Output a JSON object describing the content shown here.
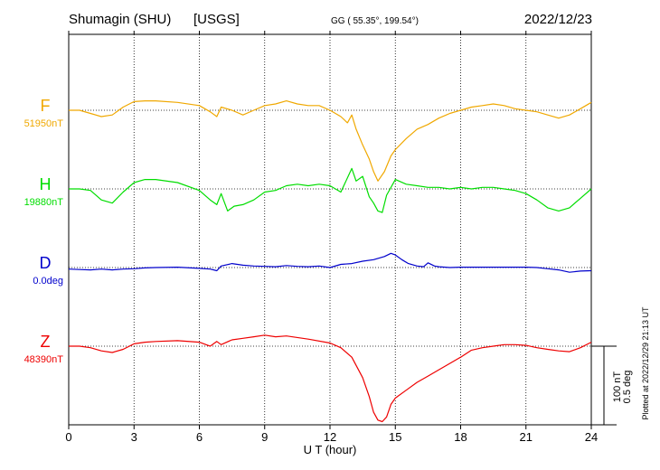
{
  "header": {
    "station": "Shumagin (SHU)",
    "source": "[USGS]",
    "coords": "GG ( 55.35°, 199.54°)",
    "date": "2022/12/23"
  },
  "side_note": "Plotted at 2022/12/29 21:13 UT",
  "scale_bar": {
    "nt_label": "100 nT",
    "deg_label": "0.5 deg"
  },
  "colors": {
    "F": "#f0a800",
    "H": "#00dd00",
    "D": "#0000cc",
    "Z": "#ee0000",
    "axis": "#000000"
  },
  "chart_data": {
    "type": "line",
    "title": "",
    "xlabel": "U T (hour)",
    "xlim": [
      0,
      24
    ],
    "x_ticks": [
      0,
      3,
      6,
      9,
      12,
      15,
      18,
      21,
      24
    ],
    "grid": true,
    "series": [
      {
        "name": "F",
        "baseline_label": "51950nT",
        "baseline": 51950,
        "x": [
          0,
          0.5,
          1,
          1.5,
          2,
          2.5,
          3,
          3.5,
          4,
          5,
          6,
          6.5,
          6.8,
          7,
          7.5,
          8,
          8.5,
          9,
          9.5,
          10,
          10.5,
          11,
          11.5,
          12,
          12.5,
          12.8,
          13,
          13.2,
          13.5,
          13.8,
          14,
          14.2,
          14.5,
          14.8,
          15,
          15.5,
          16,
          16.5,
          17,
          17.5,
          18,
          18.5,
          19,
          19.5,
          20,
          20.5,
          21,
          21.5,
          22,
          22.5,
          23,
          23.5,
          24
        ],
        "values": [
          51950,
          51950,
          51946,
          51942,
          51944,
          51954,
          51961,
          51962,
          51962,
          51960,
          51956,
          51948,
          51942,
          51954,
          51950,
          51944,
          51950,
          51956,
          51958,
          51962,
          51958,
          51956,
          51956,
          51950,
          51942,
          51934,
          51944,
          51926,
          51906,
          51888,
          51872,
          51860,
          51872,
          51892,
          51900,
          51914,
          51926,
          51932,
          51940,
          51946,
          51950,
          51954,
          51956,
          51958,
          51956,
          51952,
          51950,
          51948,
          51944,
          51940,
          51944,
          51952,
          51960
        ]
      },
      {
        "name": "H",
        "baseline_label": "19880nT",
        "baseline": 19880,
        "x": [
          0,
          0.5,
          1,
          1.5,
          2,
          2.5,
          3,
          3.5,
          4,
          5,
          6,
          6.5,
          6.8,
          7,
          7.3,
          7.6,
          8,
          8.5,
          9,
          9.5,
          10,
          10.5,
          11,
          11.5,
          12,
          12.5,
          13,
          13.2,
          13.5,
          13.8,
          14,
          14.2,
          14.4,
          14.6,
          15,
          15.5,
          16,
          16.5,
          17,
          17.5,
          18,
          18.5,
          19,
          19.5,
          20,
          20.5,
          21,
          21.5,
          22,
          22.5,
          23,
          23.5,
          24
        ],
        "values": [
          19880,
          19880,
          19878,
          19866,
          19862,
          19876,
          19888,
          19892,
          19892,
          19888,
          19878,
          19866,
          19860,
          19874,
          19852,
          19858,
          19860,
          19866,
          19876,
          19878,
          19884,
          19886,
          19884,
          19886,
          19884,
          19876,
          19906,
          19890,
          19896,
          19870,
          19862,
          19852,
          19850,
          19872,
          19892,
          19886,
          19884,
          19882,
          19882,
          19880,
          19882,
          19880,
          19882,
          19882,
          19880,
          19878,
          19874,
          19866,
          19856,
          19852,
          19856,
          19868,
          19880
        ]
      },
      {
        "name": "D",
        "baseline_label": "0.0deg",
        "baseline": 0.0,
        "x": [
          0,
          0.5,
          1,
          1.5,
          2,
          2.5,
          3,
          3.5,
          4,
          5,
          6,
          6.5,
          6.8,
          7,
          7.5,
          8,
          8.5,
          9,
          9.5,
          10,
          10.5,
          11,
          11.5,
          12,
          12.5,
          13,
          13.5,
          14,
          14.5,
          14.8,
          15,
          15.3,
          15.6,
          16,
          16.3,
          16.5,
          16.8,
          17,
          17.5,
          18,
          19,
          20,
          21,
          21.5,
          22,
          22.5,
          23,
          23.5,
          24
        ],
        "values": [
          -0.02,
          -0.025,
          -0.03,
          -0.02,
          -0.03,
          -0.02,
          -0.015,
          -0.005,
          0.0,
          0.005,
          -0.01,
          -0.02,
          -0.04,
          0.02,
          0.05,
          0.03,
          0.02,
          0.015,
          0.01,
          0.025,
          0.015,
          0.01,
          0.02,
          0.0,
          0.04,
          0.05,
          0.08,
          0.1,
          0.14,
          0.18,
          0.16,
          0.1,
          0.05,
          0.02,
          0.01,
          0.06,
          0.02,
          0.01,
          0.0,
          0.005,
          0.005,
          0.005,
          0.005,
          0.0,
          -0.015,
          -0.03,
          -0.06,
          -0.045,
          -0.04
        ]
      },
      {
        "name": "Z",
        "baseline_label": "48390nT",
        "baseline": 48390,
        "x": [
          0,
          0.5,
          1,
          1.5,
          2,
          2.5,
          3,
          3.5,
          4,
          5,
          6,
          6.5,
          6.8,
          7,
          7.5,
          8,
          8.5,
          9,
          9.5,
          10,
          11,
          12,
          12.5,
          13,
          13.5,
          13.8,
          14,
          14.2,
          14.4,
          14.6,
          14.8,
          15,
          15.5,
          16,
          16.5,
          17,
          17.5,
          18,
          18.5,
          19,
          19.5,
          20,
          20.5,
          21,
          21.5,
          22,
          22.5,
          23,
          23.5,
          24
        ],
        "values": [
          48390,
          48390,
          48388,
          48384,
          48382,
          48386,
          48393,
          48395,
          48396,
          48397,
          48395,
          48390,
          48396,
          48392,
          48398,
          48400,
          48402,
          48404,
          48402,
          48403,
          48399,
          48394,
          48388,
          48376,
          48350,
          48326,
          48306,
          48296,
          48294,
          48300,
          48316,
          48324,
          48334,
          48344,
          48352,
          48360,
          48368,
          48376,
          48385,
          48388,
          48390,
          48392,
          48392,
          48391,
          48388,
          48386,
          48384,
          48383,
          48388,
          48395
        ]
      }
    ]
  }
}
